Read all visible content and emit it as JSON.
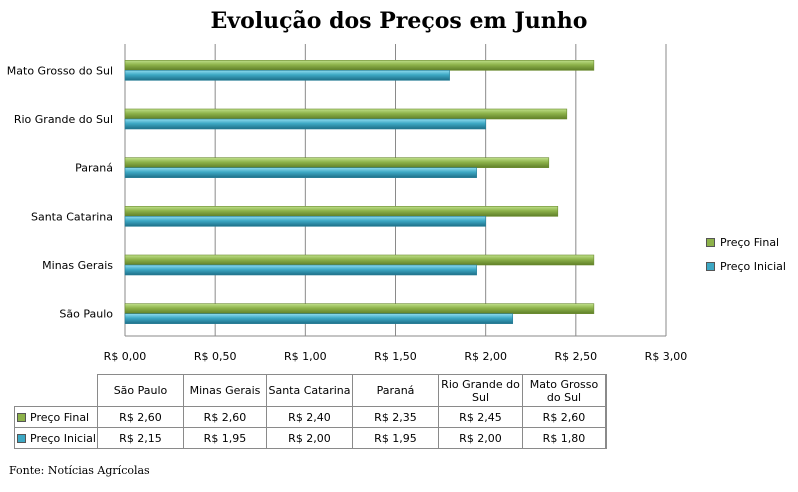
{
  "chart_data": {
    "type": "bar",
    "orientation": "horizontal",
    "title": "Evolução dos Preços em Junho",
    "categories": [
      "São Paulo",
      "Minas Gerais",
      "Santa Catarina",
      "Paraná",
      "Rio Grande do Sul",
      "Mato Grosso do Sul"
    ],
    "series": [
      {
        "name": "Preço Final",
        "values": [
          2.6,
          2.6,
          2.4,
          2.35,
          2.45,
          2.6
        ],
        "color": "#8db24a"
      },
      {
        "name": "Preço Inicial",
        "values": [
          2.15,
          1.95,
          2.0,
          1.95,
          2.0,
          1.8
        ],
        "color": "#3da8c4"
      }
    ],
    "xlim": [
      0,
      3
    ],
    "x_ticks": [
      "R$ 0,00",
      "R$ 0,50",
      "R$ 1,00",
      "R$ 1,50",
      "R$ 2,00",
      "R$ 2,50",
      "R$ 3,00"
    ],
    "grid": true,
    "legend_position": "right",
    "table": {
      "headers": [
        "São Paulo",
        "Minas Gerais",
        "Santa Catarina",
        "Paraná",
        "Rio Grande do Sul",
        "Mato Grosso do Sul"
      ],
      "rows": [
        {
          "label": "Preço Final",
          "values": [
            "R$ 2,60",
            "R$ 2,60",
            "R$ 2,40",
            "R$ 2,35",
            "R$ 2,45",
            "R$ 2,60"
          ]
        },
        {
          "label": "Preço Inicial",
          "values": [
            "R$ 2,15",
            "R$ 1,95",
            "R$ 2,00",
            "R$ 1,95",
            "R$ 2,00",
            "R$ 1,80"
          ]
        }
      ]
    },
    "source": "Fonte: Notícias Agrícolas"
  }
}
